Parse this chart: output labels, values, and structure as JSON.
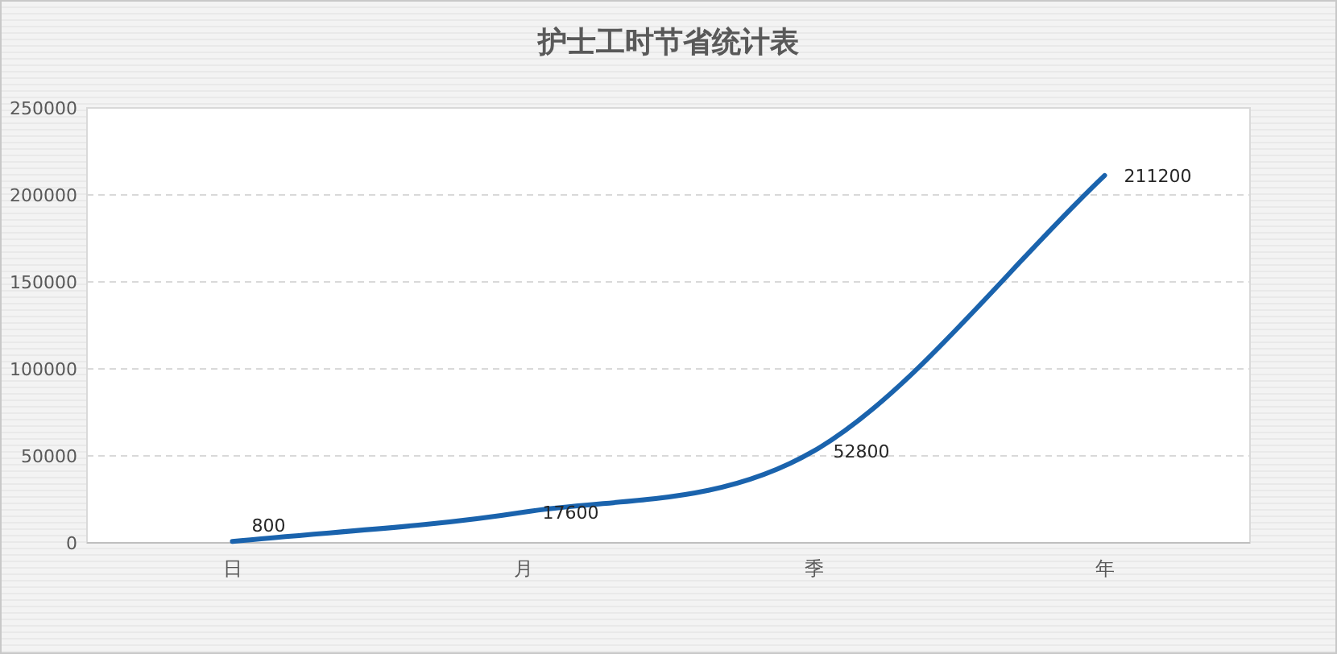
{
  "chart_data": {
    "type": "line",
    "title": "护士工时节省统计表",
    "categories": [
      "日",
      "月",
      "季",
      "年"
    ],
    "values": [
      800,
      17600,
      52800,
      211200
    ],
    "color": "#1a63ad",
    "ylim": [
      0,
      250000
    ],
    "yticks": [
      0,
      50000,
      100000,
      150000,
      200000,
      250000
    ],
    "grid": "y",
    "data_labels": true
  }
}
